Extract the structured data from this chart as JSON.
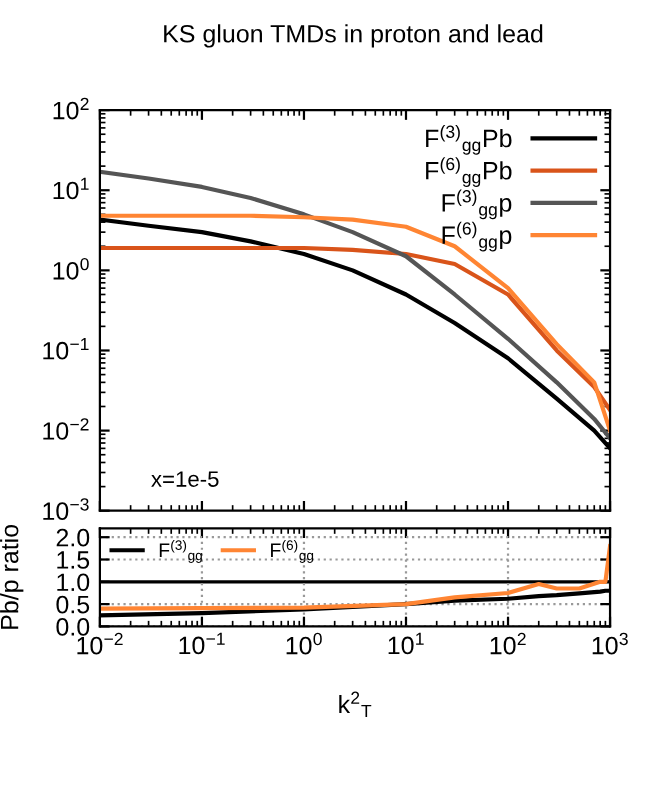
{
  "chart_data": [
    {
      "type": "line",
      "title": "KS gluon TMDs in proton and lead",
      "log": "xy",
      "xlim": [
        0.01,
        1000
      ],
      "ylim": [
        0.001,
        100
      ],
      "xticks": [
        {
          "value": 0.01,
          "label": null
        },
        {
          "value": 0.1,
          "label": null
        },
        {
          "value": 1,
          "label": null
        },
        {
          "value": 10,
          "label": null
        },
        {
          "value": 100,
          "label": null
        },
        {
          "value": 1000,
          "label": null
        }
      ],
      "yticks": [
        {
          "value": 0.001,
          "label": "10$^{−3}$"
        },
        {
          "value": 0.01,
          "label": "10$^{−2}$"
        },
        {
          "value": 0.1,
          "label": "10$^{−1}$"
        },
        {
          "value": 1,
          "label": "10$^{0}$"
        },
        {
          "value": 10,
          "label": "10$^{1}$"
        },
        {
          "value": 100,
          "label": "10$^{2}$"
        }
      ],
      "tick_labels": "y",
      "legend": "top right",
      "grid": false,
      "x": [
        0.01,
        0.03,
        0.1,
        0.3,
        1,
        3,
        10,
        30,
        100,
        300,
        700,
        1000
      ],
      "series": [
        {
          "name": "F$^{(3)}$$_{gg}$Pb",
          "color": "#000000",
          "values": [
            4.3,
            3.6,
            3.0,
            2.3,
            1.6,
            1.0,
            0.5,
            0.22,
            0.08,
            0.025,
            0.01,
            0.006
          ]
        },
        {
          "name": "F$^{(6)}$$_{gg}$Pb",
          "color": "#d9541a",
          "values": [
            1.9,
            1.9,
            1.9,
            1.9,
            1.9,
            1.8,
            1.6,
            1.2,
            0.5,
            0.1,
            0.035,
            0.018
          ]
        },
        {
          "name": "F$^{(3)}$$_{gg}$p",
          "color": "#555555",
          "values": [
            17,
            14,
            11,
            8,
            5,
            3,
            1.5,
            0.5,
            0.14,
            0.04,
            0.014,
            0.008
          ]
        },
        {
          "name": "F$^{(6)}$$_{gg}$p",
          "color": "#ff8533",
          "values": [
            4.8,
            4.8,
            4.8,
            4.8,
            4.6,
            4.3,
            3.5,
            2.0,
            0.6,
            0.12,
            0.04,
            0.01
          ]
        }
      ],
      "annotations": [
        "x=1e-5"
      ]
    },
    {
      "type": "line",
      "log": "x",
      "xlim": [
        0.01,
        1000
      ],
      "ylim": [
        0,
        2.2
      ],
      "xticks": [
        {
          "value": 0.01,
          "label": "10$^{−2}$"
        },
        {
          "value": 0.1,
          "label": "10$^{−1}$"
        },
        {
          "value": 1,
          "label": "10$^{0}$"
        },
        {
          "value": 10,
          "label": "10$^{1}$"
        },
        {
          "value": 100,
          "label": "10$^{2}$"
        },
        {
          "value": 1000,
          "label": "10$^{3}$"
        }
      ],
      "yticks": [
        {
          "value": 0,
          "label": "0.0"
        },
        {
          "value": 0.5,
          "label": "0.5"
        },
        {
          "value": 1,
          "label": "1.0"
        },
        {
          "value": 1.5,
          "label": "1.5"
        },
        {
          "value": 2,
          "label": "2.0"
        }
      ],
      "xlabel": "k$^{2}$$_{T}$",
      "ylabel": "Pb/p ratio",
      "legend": "top left",
      "grid": true,
      "ref_lines": [
        {
          "axis": "y",
          "value": 1,
          "color": "#000000",
          "line_style": "solid"
        }
      ],
      "x": [
        0.01,
        0.1,
        1,
        10,
        30,
        100,
        200,
        300,
        500,
        800,
        900,
        1000
      ],
      "series": [
        {
          "name": "F$^{(3)}$$_{gg}$",
          "color": "#000000",
          "values": [
            0.25,
            0.3,
            0.38,
            0.5,
            0.58,
            0.62,
            0.68,
            0.7,
            0.74,
            0.78,
            0.8,
            0.8
          ]
        },
        {
          "name": "F$^{(6)}$$_{gg}$",
          "color": "#ff8533",
          "values": [
            0.4,
            0.41,
            0.42,
            0.5,
            0.65,
            0.75,
            0.95,
            0.85,
            0.85,
            1.0,
            1.0,
            1.8
          ]
        }
      ]
    }
  ]
}
